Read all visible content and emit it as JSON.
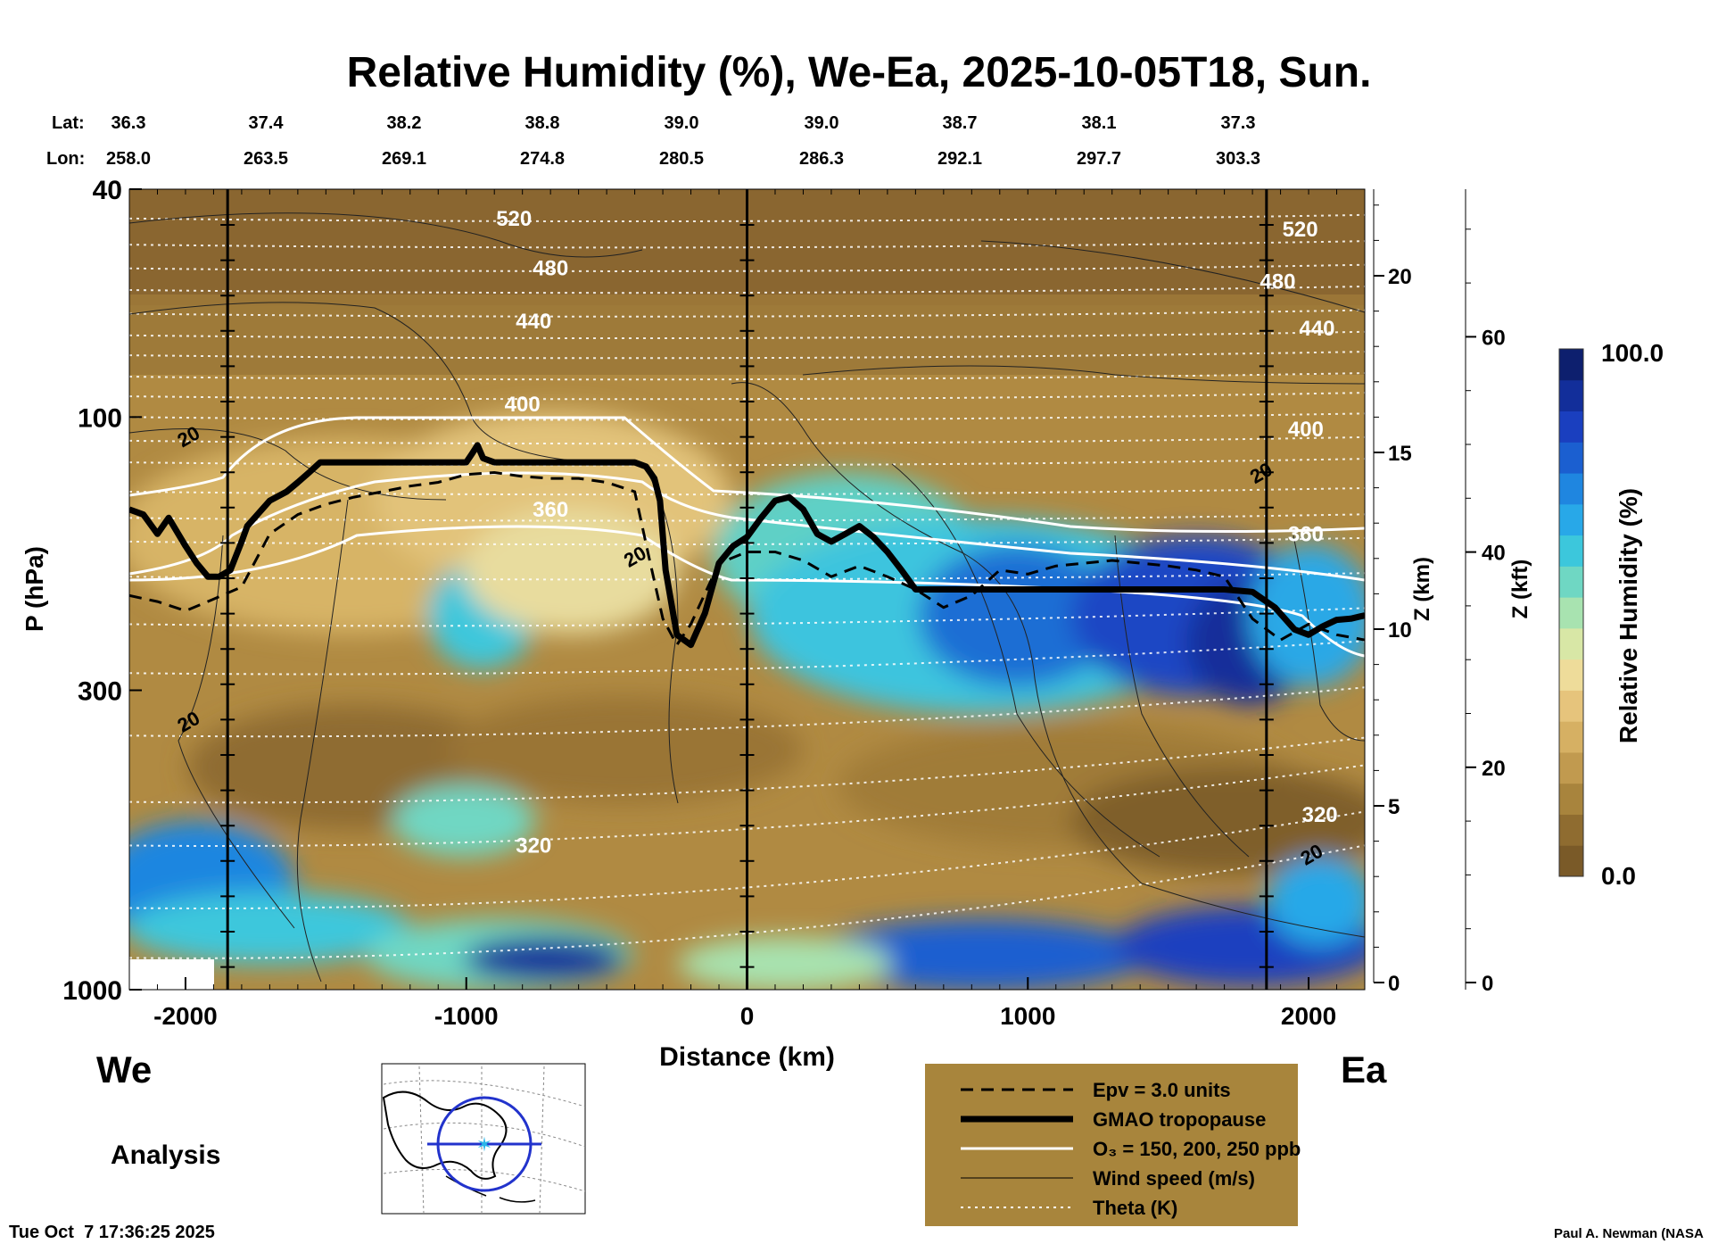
{
  "title": "Relative Humidity (%), We-Ea, 2025-10-05T18, Sun.",
  "coords": {
    "lat_label": "Lat:",
    "lon_label": "Lon:",
    "distances_km": [
      -1900,
      -1400,
      -900,
      -400,
      100,
      600,
      1100,
      1600,
      2100
    ],
    "lat": [
      "36.3",
      "37.4",
      "38.2",
      "38.8",
      "39.0",
      "39.0",
      "38.7",
      "38.1",
      "37.3"
    ],
    "lon": [
      "258.0",
      "263.5",
      "269.1",
      "274.8",
      "280.5",
      "286.3",
      "292.1",
      "297.7",
      "303.3"
    ]
  },
  "direction": {
    "west": "We",
    "east": "Ea"
  },
  "analysis_label": "Analysis",
  "timestamp": "Tue Oct  7 17:36:25 2025",
  "author": "Paul A. Newman (NASA",
  "legend": {
    "items": [
      {
        "label": "Epv = 3.0 units",
        "style": "dashed-black"
      },
      {
        "label": "GMAO tropopause",
        "style": "thick-black"
      },
      {
        "label": "O₃ = 150, 200, 250 ppb",
        "style": "white"
      },
      {
        "label": "Wind speed (m/s)",
        "style": "thin-black"
      },
      {
        "label": "Theta (K)",
        "style": "dotted-white"
      }
    ],
    "background": "#a8853c"
  },
  "colorbar": {
    "label": "Relative Humidity (%)",
    "max_label": "100.0",
    "min_label": "0.0",
    "colors": [
      "#7a5a28",
      "#8f6c30",
      "#a8843d",
      "#c19a4f",
      "#d6b063",
      "#e6c47c",
      "#eedc9a",
      "#d8e7a6",
      "#a8e3b0",
      "#6fd7c3",
      "#3cc7dc",
      "#28a8e8",
      "#1f86e0",
      "#1b5fd0",
      "#1a3fbf",
      "#122e9a",
      "#0d1f6e"
    ]
  },
  "chart_data": {
    "type": "heatmap",
    "title": "Relative Humidity (%), We-Ea, 2025-10-05T18, Sun.",
    "xlabel": "Distance (km)",
    "ylabel": "P (hPa)",
    "y2label": "Z (km)",
    "y3label": "Z (kft)",
    "xlim": [
      -2200,
      2200
    ],
    "ylim": [
      1000,
      40
    ],
    "y_scale": "log",
    "x_ticks": [
      -2000,
      -1000,
      0,
      1000,
      2000
    ],
    "y_ticks": [
      40,
      100,
      300,
      1000
    ],
    "z_km_ticks": [
      0,
      5,
      10,
      15,
      20
    ],
    "z_kft_ticks": [
      0,
      20,
      40,
      60
    ],
    "vertical_lines_km": [
      -1850,
      0,
      1850
    ],
    "theta_labels": [
      {
        "value": "520",
        "x": -830,
        "p": 45
      },
      {
        "value": "480",
        "x": -700,
        "p": 55
      },
      {
        "value": "440",
        "x": -760,
        "p": 68
      },
      {
        "value": "400",
        "x": -800,
        "p": 95
      },
      {
        "value": "360",
        "x": -700,
        "p": 145
      },
      {
        "value": "320",
        "x": -760,
        "p": 560
      },
      {
        "value": "520",
        "x": 1970,
        "p": 47
      },
      {
        "value": "480",
        "x": 1890,
        "p": 58
      },
      {
        "value": "440",
        "x": 2030,
        "p": 70
      },
      {
        "value": "400",
        "x": 1990,
        "p": 105
      },
      {
        "value": "360",
        "x": 1990,
        "p": 160
      },
      {
        "value": "320",
        "x": 2040,
        "p": 495
      }
    ],
    "wind_labels": [
      {
        "value": "20",
        "x": -1990,
        "p": 108
      },
      {
        "value": "20",
        "x": -400,
        "p": 175
      },
      {
        "value": "20",
        "x": -1990,
        "p": 340
      },
      {
        "value": "20",
        "x": 1830,
        "p": 125
      },
      {
        "value": "20",
        "x": 2010,
        "p": 580
      }
    ],
    "tropopause": {
      "x": [
        -2200,
        -2150,
        -2100,
        -2060,
        -2000,
        -1960,
        -1920,
        -1880,
        -1840,
        -1800,
        -1780,
        -1700,
        -1640,
        -1600,
        -1560,
        -1520,
        -1460,
        -1400,
        -1300,
        -1200,
        -1100,
        -1000,
        -980,
        -960,
        -940,
        -900,
        -800,
        -700,
        -600,
        -500,
        -400,
        -360,
        -330,
        -310,
        -290,
        -250,
        -200,
        -150,
        -100,
        -50,
        0,
        50,
        100,
        150,
        200,
        250,
        300,
        350,
        400,
        450,
        500,
        550,
        600,
        700,
        800,
        900,
        1000,
        1100,
        1200,
        1300,
        1400,
        1500,
        1600,
        1700,
        1800,
        1880,
        1950,
        2000,
        2050,
        2100,
        2150,
        2200
      ],
      "p": [
        145,
        148,
        160,
        150,
        168,
        180,
        190,
        190,
        185,
        165,
        155,
        140,
        135,
        130,
        125,
        120,
        120,
        120,
        120,
        120,
        120,
        120,
        116,
        112,
        118,
        120,
        120,
        120,
        120,
        120,
        120,
        122,
        128,
        140,
        185,
        240,
        250,
        220,
        180,
        168,
        162,
        150,
        140,
        138,
        145,
        160,
        165,
        160,
        155,
        162,
        172,
        185,
        200,
        200,
        200,
        200,
        200,
        200,
        200,
        200,
        200,
        200,
        200,
        200,
        202,
        215,
        235,
        240,
        232,
        226,
        225,
        222
      ]
    },
    "epv_3": {
      "x": [
        -2200,
        -2100,
        -2000,
        -1900,
        -1800,
        -1700,
        -1600,
        -1500,
        -1400,
        -1300,
        -1200,
        -1100,
        -1000,
        -900,
        -800,
        -700,
        -600,
        -500,
        -400,
        -350,
        -300,
        -250,
        -200,
        -100,
        0,
        100,
        200,
        300,
        400,
        500,
        600,
        700,
        800,
        900,
        1000,
        1100,
        1200,
        1300,
        1400,
        1500,
        1600,
        1700,
        1800,
        1900,
        2000,
        2100,
        2200
      ],
      "p": [
        205,
        210,
        218,
        208,
        198,
        160,
        148,
        142,
        138,
        135,
        132,
        130,
        126,
        125,
        127,
        128,
        128,
        130,
        135,
        175,
        225,
        250,
        230,
        180,
        172,
        172,
        178,
        190,
        182,
        190,
        200,
        215,
        205,
        185,
        188,
        182,
        180,
        178,
        180,
        182,
        185,
        190,
        225,
        245,
        230,
        240,
        245
      ]
    },
    "series": [
      {
        "name": "Epv = 3.0 units",
        "style": "dashed"
      },
      {
        "name": "GMAO tropopause",
        "style": "thick"
      },
      {
        "name": "O₃ = 150, 200, 250 ppb",
        "style": "white"
      },
      {
        "name": "Wind speed (m/s)",
        "style": "thin"
      },
      {
        "name": "Theta (K)",
        "style": "dotted"
      }
    ]
  }
}
